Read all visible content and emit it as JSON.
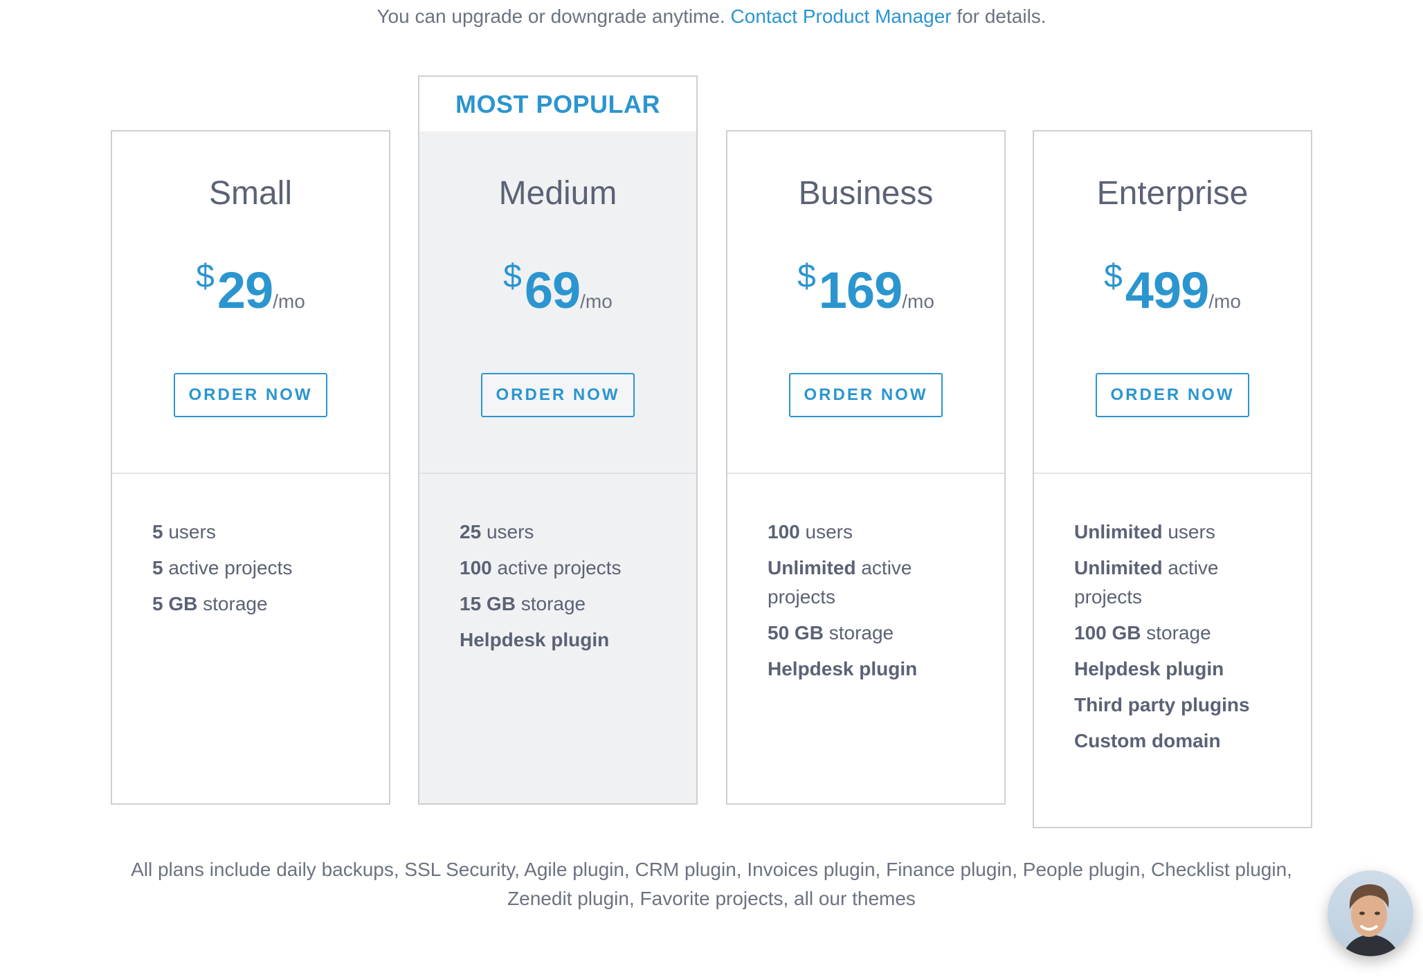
{
  "header": {
    "prefix": "You can upgrade or downgrade anytime.",
    "link": "Contact Product Manager",
    "suffix": "for details."
  },
  "accent_color": "#2b95cf",
  "badge": "MOST POPULAR",
  "plans": [
    {
      "name": "Small",
      "currency": "$",
      "price": "29",
      "period": "/mo",
      "button": "ORDER NOW",
      "features": [
        {
          "bold": "5",
          "text": "users"
        },
        {
          "bold": "5",
          "text": "active projects"
        },
        {
          "bold": "5 GB",
          "text": "storage"
        }
      ]
    },
    {
      "name": "Medium",
      "currency": "$",
      "price": "69",
      "period": "/mo",
      "button": "ORDER NOW",
      "features": [
        {
          "bold": "25",
          "text": "users"
        },
        {
          "bold": "100",
          "text": "active projects"
        },
        {
          "bold": "15 GB",
          "text": "storage"
        },
        {
          "bold": "Helpdesk plugin",
          "text": ""
        }
      ]
    },
    {
      "name": "Business",
      "currency": "$",
      "price": "169",
      "period": "/mo",
      "button": "ORDER NOW",
      "features": [
        {
          "bold": "100",
          "text": "users"
        },
        {
          "bold": "Unlimited",
          "text": "active projects"
        },
        {
          "bold": "50 GB",
          "text": "storage"
        },
        {
          "bold": "Helpdesk plugin",
          "text": ""
        }
      ]
    },
    {
      "name": "Enterprise",
      "currency": "$",
      "price": "499",
      "period": "/mo",
      "button": "ORDER NOW",
      "features": [
        {
          "bold": "Unlimited",
          "text": "users"
        },
        {
          "bold": "Unlimited",
          "text": "active projects"
        },
        {
          "bold": "100 GB",
          "text": "storage"
        },
        {
          "bold": "Helpdesk plugin",
          "text": ""
        },
        {
          "bold": "Third party plugins",
          "text": ""
        },
        {
          "bold": "Custom domain",
          "text": ""
        }
      ]
    }
  ],
  "footer": "All plans include daily backups, SSL Security, Agile plugin, CRM plugin, Invoices plugin, Finance plugin, People plugin, Checklist plugin, Zenedit plugin, Favorite projects, all our themes"
}
